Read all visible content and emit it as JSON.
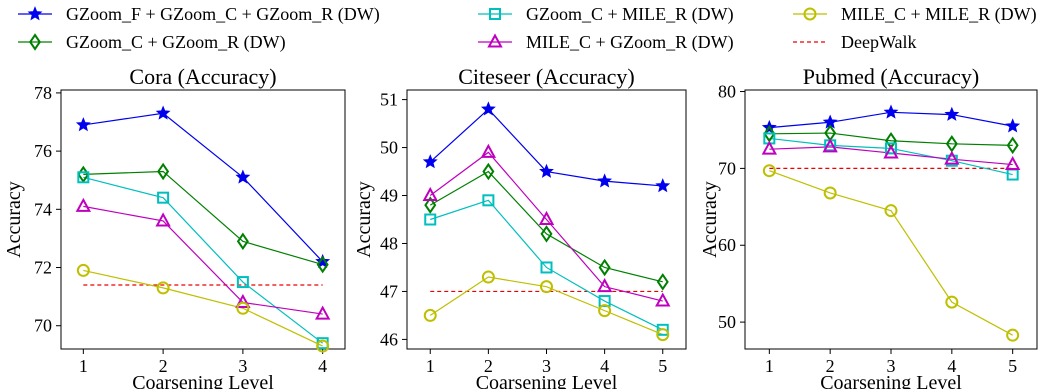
{
  "legend": {
    "entries": [
      {
        "series_index": 0,
        "label": "GZoom_F + GZoom_C + GZoom_R (DW)",
        "color": "#0000ee",
        "marker": "star"
      },
      {
        "series_index": 2,
        "label": "GZoom_C + MILE_R (DW)",
        "color": "#00bfbf",
        "marker": "square"
      },
      {
        "series_index": 4,
        "label": "MILE_C + MILE_R (DW)",
        "color": "#bfbf00",
        "marker": "circle"
      },
      {
        "series_index": 1,
        "label": "GZoom_C + GZoom_R (DW)",
        "color": "#008000",
        "marker": "diamond"
      },
      {
        "series_index": 3,
        "label": "MILE_C + GZoom_R (DW)",
        "color": "#bf00bf",
        "marker": "triangle"
      },
      {
        "series_index": 5,
        "label": "DeepWalk",
        "color": "#ee0000",
        "marker": "dashed"
      }
    ]
  },
  "chart_data": [
    {
      "type": "line",
      "title": "Cora (Accuracy)",
      "xlabel": "Coarsening Level",
      "ylabel": "Accuracy",
      "x": [
        1,
        2,
        3,
        4
      ],
      "xticks": [
        "1",
        "2",
        "3",
        "4"
      ],
      "xlim": [
        0.72,
        4.28
      ],
      "ylim": [
        69.2,
        78.1
      ],
      "yticks": [
        70,
        72,
        74,
        76,
        78
      ],
      "series": [
        {
          "name": "GZoom_F + GZoom_C + GZoom_R (DW)",
          "values": [
            76.9,
            77.3,
            75.1,
            72.2
          ]
        },
        {
          "name": "GZoom_C + GZoom_R (DW)",
          "values": [
            75.2,
            75.3,
            72.9,
            72.1
          ]
        },
        {
          "name": "GZoom_C + MILE_R (DW)",
          "values": [
            75.1,
            74.4,
            71.5,
            69.4
          ]
        },
        {
          "name": "MILE_C + GZoom_R (DW)",
          "values": [
            74.1,
            73.6,
            70.8,
            70.4
          ]
        },
        {
          "name": "MILE_C + MILE_R (DW)",
          "values": [
            71.9,
            71.3,
            70.6,
            69.3
          ]
        }
      ],
      "baseline": {
        "name": "DeepWalk",
        "value": 71.4
      }
    },
    {
      "type": "line",
      "title": "Citeseer (Accuracy)",
      "xlabel": "Coarsening Level",
      "ylabel": "Accuracy",
      "x": [
        1,
        2,
        3,
        4,
        5
      ],
      "xticks": [
        "1",
        "2",
        "3",
        "4",
        "5"
      ],
      "xlim": [
        0.6,
        5.4
      ],
      "ylim": [
        45.8,
        51.2
      ],
      "yticks": [
        46,
        47,
        48,
        49,
        50,
        51
      ],
      "series": [
        {
          "name": "GZoom_F + GZoom_C + GZoom_R (DW)",
          "values": [
            49.7,
            50.8,
            49.5,
            49.3,
            49.2
          ]
        },
        {
          "name": "GZoom_C + GZoom_R (DW)",
          "values": [
            48.8,
            49.5,
            48.2,
            47.5,
            47.2
          ]
        },
        {
          "name": "GZoom_C + MILE_R (DW)",
          "values": [
            48.5,
            48.9,
            47.5,
            46.8,
            46.2
          ]
        },
        {
          "name": "MILE_C + GZoom_R (DW)",
          "values": [
            49.0,
            49.9,
            48.5,
            47.1,
            46.8
          ]
        },
        {
          "name": "MILE_C + MILE_R (DW)",
          "values": [
            46.5,
            47.3,
            47.1,
            46.6,
            46.1
          ]
        }
      ],
      "baseline": {
        "name": "DeepWalk",
        "value": 47.0
      }
    },
    {
      "type": "line",
      "title": "Pubmed (Accuracy)",
      "xlabel": "Coarsening Level",
      "ylabel": "Accuracy",
      "x": [
        1,
        2,
        3,
        4,
        5
      ],
      "xticks": [
        "1",
        "2",
        "3",
        "4",
        "5"
      ],
      "xlim": [
        0.6,
        5.4
      ],
      "ylim": [
        46.5,
        80.2
      ],
      "yticks": [
        50,
        60,
        70,
        80
      ],
      "series": [
        {
          "name": "GZoom_F + GZoom_C + GZoom_R (DW)",
          "values": [
            75.3,
            76.0,
            77.3,
            77.0,
            75.5
          ]
        },
        {
          "name": "GZoom_C + GZoom_R (DW)",
          "values": [
            74.5,
            74.6,
            73.6,
            73.2,
            73.0
          ]
        },
        {
          "name": "GZoom_C + MILE_R (DW)",
          "values": [
            73.9,
            73.0,
            72.6,
            71.0,
            69.2
          ]
        },
        {
          "name": "MILE_C + GZoom_R (DW)",
          "values": [
            72.5,
            72.8,
            72.0,
            71.2,
            70.5
          ]
        },
        {
          "name": "MILE_C + MILE_R (DW)",
          "values": [
            69.7,
            66.8,
            64.5,
            52.6,
            48.3
          ]
        }
      ],
      "baseline": {
        "name": "DeepWalk",
        "value": 70.0
      }
    }
  ]
}
